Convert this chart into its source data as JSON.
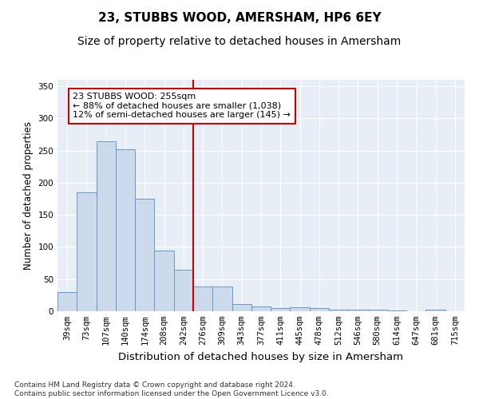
{
  "title": "23, STUBBS WOOD, AMERSHAM, HP6 6EY",
  "subtitle": "Size of property relative to detached houses in Amersham",
  "xlabel": "Distribution of detached houses by size in Amersham",
  "ylabel": "Number of detached properties",
  "bar_labels": [
    "39sqm",
    "73sqm",
    "107sqm",
    "140sqm",
    "174sqm",
    "208sqm",
    "242sqm",
    "276sqm",
    "309sqm",
    "343sqm",
    "377sqm",
    "411sqm",
    "445sqm",
    "478sqm",
    "512sqm",
    "546sqm",
    "580sqm",
    "614sqm",
    "647sqm",
    "681sqm",
    "715sqm"
  ],
  "bar_values": [
    30,
    185,
    265,
    252,
    175,
    94,
    65,
    38,
    38,
    11,
    7,
    5,
    6,
    5,
    3,
    2,
    3,
    1,
    0,
    2,
    0
  ],
  "bar_color": "#ccd9ea",
  "bar_edge_color": "#6699cc",
  "vline_x_index": 6.5,
  "vline_color": "#cc0000",
  "annotation_text": "23 STUBBS WOOD: 255sqm\n← 88% of detached houses are smaller (1,038)\n12% of semi-detached houses are larger (145) →",
  "annotation_box_color": "#ffffff",
  "annotation_box_edge_color": "#cc0000",
  "ylim": [
    0,
    360
  ],
  "yticks": [
    0,
    50,
    100,
    150,
    200,
    250,
    300,
    350
  ],
  "footer": "Contains HM Land Registry data © Crown copyright and database right 2024.\nContains public sector information licensed under the Open Government Licence v3.0.",
  "plot_bg_color": "#e8eef6",
  "title_fontsize": 11,
  "subtitle_fontsize": 10,
  "xlabel_fontsize": 9.5,
  "ylabel_fontsize": 8.5,
  "tick_fontsize": 7.5,
  "footer_fontsize": 6.5,
  "annotation_fontsize": 8
}
